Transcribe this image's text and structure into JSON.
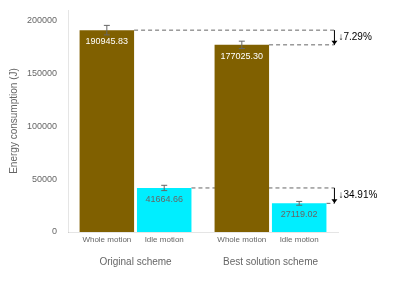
{
  "chart_data": {
    "type": "bar",
    "categories": [
      "Original scheme",
      "Best solution scheme"
    ],
    "series": [
      {
        "name": "Whole motion",
        "color": "#806000",
        "values": [
          190945.83,
          177025.3
        ],
        "value_labels": [
          "190945.83",
          "177025.30"
        ],
        "errors": [
          4500,
          3500
        ],
        "annotation": "↓7.29%"
      },
      {
        "name": "Idle motion",
        "color": "#00EEFF",
        "values": [
          41664.66,
          27119.02
        ],
        "value_labels": [
          "41664.66",
          "27119.02"
        ],
        "errors": [
          2500,
          1800
        ],
        "annotation": "↓34.91%"
      }
    ],
    "ylabel": "Energy consumption (J)",
    "ylim": [
      0,
      210000
    ],
    "yticks": [
      0,
      50000,
      100000,
      150000,
      200000
    ],
    "grid": false,
    "data_labels": true
  }
}
